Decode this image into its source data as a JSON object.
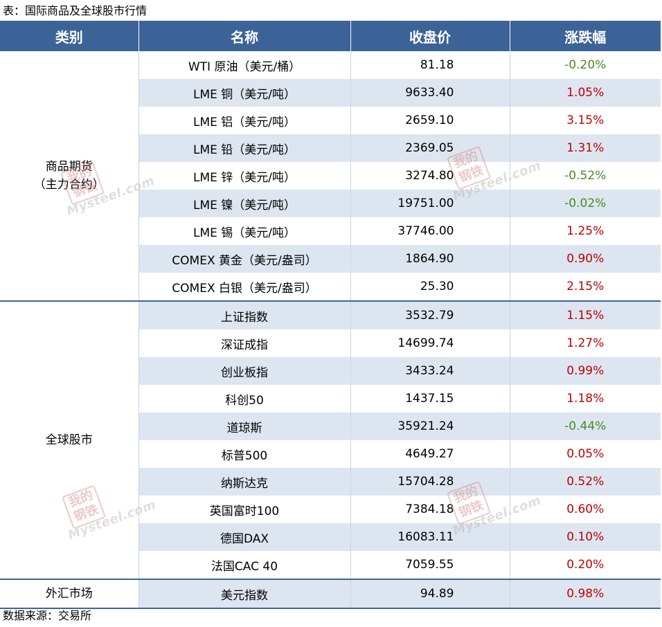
{
  "caption": "表：国际商品及全球股市行情",
  "source": "数据来源：交易所",
  "watermark": {
    "seal_text": "我的钢铁",
    "brand_text": "Mysteel.com"
  },
  "colors": {
    "header_bg": "#3c6398",
    "row_shade": "#dde5f0",
    "up": "#c00000",
    "down": "#4a8a22"
  },
  "headers": {
    "category": "类别",
    "name": "名称",
    "close": "收盘价",
    "change": "涨跌幅"
  },
  "groups": [
    {
      "category": "商品期货\n（主力合约）",
      "rows": [
        {
          "name": "WTI 原油（美元/桶）",
          "close": "81.18",
          "change": "-0.20%"
        },
        {
          "name": "LME 铜（美元/吨）",
          "close": "9633.40",
          "change": "1.05%"
        },
        {
          "name": "LME 铝（美元/吨）",
          "close": "2659.10",
          "change": "3.15%"
        },
        {
          "name": "LME 铅（美元/吨）",
          "close": "2369.05",
          "change": "1.31%"
        },
        {
          "name": "LME 锌（美元/吨）",
          "close": "3274.80",
          "change": "-0.52%"
        },
        {
          "name": "LME 镍（美元/吨）",
          "close": "19751.00",
          "change": "-0.02%"
        },
        {
          "name": "LME 锡（美元/吨）",
          "close": "37746.00",
          "change": "1.25%"
        },
        {
          "name": "COMEX 黄金（美元/盎司）",
          "close": "1864.90",
          "change": "0.90%"
        },
        {
          "name": "COMEX 白银（美元/盎司）",
          "close": "25.30",
          "change": "2.15%"
        }
      ]
    },
    {
      "category": "全球股市",
      "rows": [
        {
          "name": "上证指数",
          "close": "3532.79",
          "change": "1.15%"
        },
        {
          "name": "深证成指",
          "close": "14699.74",
          "change": "1.27%"
        },
        {
          "name": "创业板指",
          "close": "3433.24",
          "change": "0.99%"
        },
        {
          "name": "科创50",
          "close": "1437.15",
          "change": "1.18%"
        },
        {
          "name": "道琼斯",
          "close": "35921.24",
          "change": "-0.44%"
        },
        {
          "name": "标普500",
          "close": "4649.27",
          "change": "0.05%"
        },
        {
          "name": "纳斯达克",
          "close": "15704.28",
          "change": "0.52%"
        },
        {
          "name": "英国富时100",
          "close": "7384.18",
          "change": "0.60%"
        },
        {
          "name": "德国DAX",
          "close": "16083.11",
          "change": "0.10%"
        },
        {
          "name": "法国CAC 40",
          "close": "7059.55",
          "change": "0.20%"
        }
      ]
    },
    {
      "category": "外汇市场",
      "rows": [
        {
          "name": "美元指数",
          "close": "94.89",
          "change": "0.98%"
        }
      ]
    }
  ]
}
